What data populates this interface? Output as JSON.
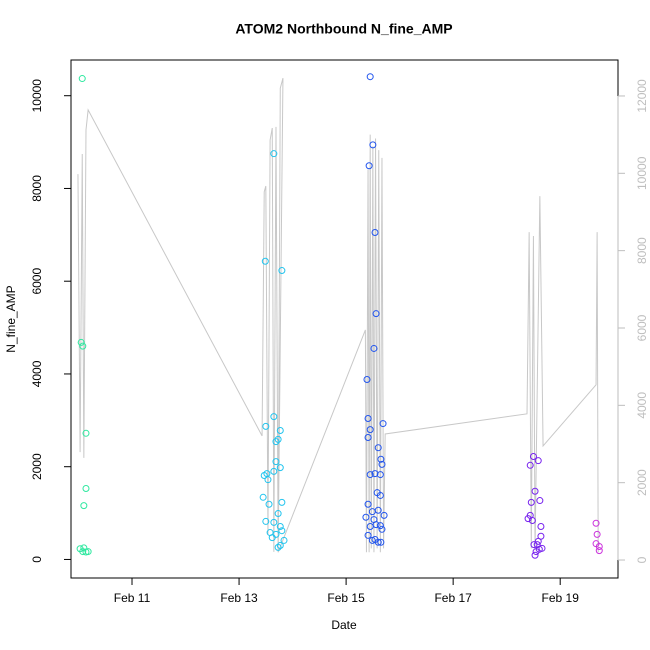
{
  "chart_data": {
    "type": "scatter",
    "title": "ATOM2 Northbound N_fine_AMP",
    "xlabel": "Date",
    "ylabel": "N_fine_AMP",
    "xlim": [
      9.86,
      20.08
    ],
    "xticks": [
      {
        "value": 11,
        "label": "Feb 11"
      },
      {
        "value": 13,
        "label": "Feb 13"
      },
      {
        "value": 15,
        "label": "Feb 15"
      },
      {
        "value": 17,
        "label": "Feb 17"
      },
      {
        "value": 19,
        "label": "Feb 19"
      }
    ],
    "ylim": [
      -400,
      10770
    ],
    "yticks": [
      0,
      2000,
      4000,
      6000,
      8000,
      10000
    ],
    "y2lim": [
      -465,
      12930
    ],
    "y2ticks": [
      0,
      2000,
      4000,
      6000,
      8000,
      10000,
      12000
    ],
    "y2color": "#bebebe",
    "series": [
      {
        "color": "#2fe8a0",
        "x": [
          10.07,
          10.05,
          10.08,
          10.14,
          10.14,
          10.1,
          10.03,
          10.1,
          10.08,
          10.14,
          10.18
        ],
        "values": [
          10370,
          4680,
          4600,
          2720,
          1530,
          1160,
          230,
          250,
          170,
          160,
          170
        ]
      },
      {
        "color": "#22c4ee",
        "x": [
          13.65,
          13.49,
          13.8,
          13.65,
          13.5,
          13.77,
          13.73,
          13.69,
          13.69,
          13.77,
          13.52,
          13.47,
          13.54,
          13.65,
          13.45,
          13.8,
          13.56,
          13.73,
          13.5,
          13.65,
          13.77,
          13.58,
          13.69,
          13.8,
          13.84,
          13.62,
          13.73,
          13.77
        ],
        "values": [
          8750,
          6430,
          6230,
          3080,
          2870,
          2780,
          2590,
          2540,
          2110,
          1980,
          1850,
          1810,
          1720,
          1900,
          1340,
          1230,
          1190,
          990,
          820,
          800,
          710,
          580,
          540,
          620,
          410,
          470,
          260,
          300
        ]
      },
      {
        "color": "#2255ee",
        "x": [
          15.45,
          15.5,
          15.43,
          15.54,
          15.56,
          15.52,
          15.39,
          15.41,
          15.69,
          15.45,
          15.41,
          15.6,
          15.65,
          15.67,
          15.54,
          15.45,
          15.64,
          15.58,
          15.64,
          15.41,
          15.6,
          15.49,
          15.37,
          15.71,
          15.52,
          15.56,
          15.45,
          15.64,
          15.67,
          15.41,
          15.49,
          15.6,
          15.65,
          15.54
        ],
        "values": [
          10410,
          8940,
          8490,
          7050,
          5300,
          4550,
          3880,
          3040,
          2930,
          2800,
          2630,
          2410,
          2160,
          2050,
          1850,
          1830,
          1830,
          1440,
          1380,
          1190,
          1060,
          1030,
          910,
          950,
          860,
          750,
          710,
          730,
          650,
          520,
          410,
          370,
          370,
          430
        ]
      },
      {
        "color": "#7722ee",
        "x": [
          18.5,
          18.59,
          18.44,
          18.53,
          18.62,
          18.46,
          18.44,
          18.4,
          18.48,
          18.64,
          18.64,
          18.59,
          18.51,
          18.57,
          18.61,
          18.55,
          18.53,
          18.66
        ],
        "values": [
          2220,
          2130,
          2030,
          1470,
          1270,
          1230,
          950,
          880,
          840,
          710,
          500,
          390,
          320,
          320,
          220,
          170,
          90,
          240
        ]
      },
      {
        "color": "#cc33dd",
        "x": [
          19.67,
          19.69,
          19.67,
          19.73,
          19.73
        ],
        "values": [
          780,
          540,
          340,
          280,
          190
        ]
      },
      {
        "type": "line",
        "axis": "y2",
        "color": "#c8c8c8",
        "x": [
          9.99,
          10.03,
          10.07,
          10.1,
          10.14,
          10.18,
          13.43,
          13.47,
          13.5,
          13.54,
          13.58,
          13.62,
          13.65,
          13.69,
          13.73,
          13.77,
          13.82,
          13.73,
          15.36,
          15.38,
          15.41,
          15.43,
          15.45,
          15.47,
          15.5,
          15.52,
          15.55,
          15.58,
          15.61,
          15.64,
          15.67,
          15.7,
          15.73,
          18.38,
          18.42,
          18.46,
          18.5,
          18.53,
          18.62,
          18.68,
          19.67,
          19.69,
          19.71
        ],
        "values": [
          9980,
          2790,
          10500,
          2640,
          11120,
          11640,
          3210,
          9520,
          9670,
          670,
          10860,
          11170,
          210,
          11200,
          200,
          12200,
          12460,
          200,
          5950,
          200,
          10100,
          200,
          11000,
          300,
          10700,
          200,
          10900,
          300,
          10600,
          200,
          10400,
          300,
          3260,
          3780,
          8480,
          300,
          8380,
          250,
          9410,
          2950,
          4530,
          8480,
          200
        ]
      }
    ]
  }
}
